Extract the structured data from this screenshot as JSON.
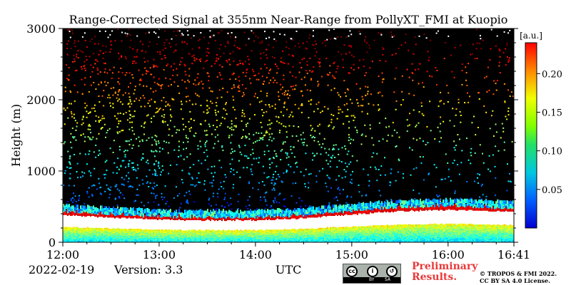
{
  "chart_data": {
    "type": "heatmap",
    "title": "Range-Corrected Signal at 355nm Near-Range from PollyXT_FMI at Kuopio",
    "xlabel": "UTC",
    "ylabel": "Height (m)",
    "xlim": [
      "12:00",
      "16:41"
    ],
    "ylim": [
      0,
      3000
    ],
    "x_ticks": [
      "12:00",
      "13:00",
      "14:00",
      "15:00",
      "16:00",
      "16:41"
    ],
    "y_ticks": [
      "0",
      "1000",
      "2000",
      "3000"
    ],
    "colorbar": {
      "label": "[a.u.]",
      "range": [
        0.0,
        0.24
      ],
      "ticks": [
        "0.05",
        "0.10",
        "0.15",
        "0.20"
      ],
      "colormap": "jet"
    },
    "boundary_layer_top_m": [
      {
        "time": "12:00",
        "height": 450
      },
      {
        "time": "12:30",
        "height": 410
      },
      {
        "time": "13:00",
        "height": 380
      },
      {
        "time": "13:30",
        "height": 370
      },
      {
        "time": "14:00",
        "height": 370
      },
      {
        "time": "14:30",
        "height": 400
      },
      {
        "time": "15:00",
        "height": 460
      },
      {
        "time": "15:30",
        "height": 510
      },
      {
        "time": "16:00",
        "height": 530
      },
      {
        "time": "16:41",
        "height": 500
      }
    ]
  },
  "footer": {
    "date": "2022-02-19",
    "version": "Version: 3.3",
    "utc_label": "UTC",
    "license_badge": {
      "top_icons": [
        "cc-icon",
        "by-person-icon",
        "sa-icon"
      ],
      "bottom_left": "BY",
      "bottom_right": "SA"
    },
    "preliminary_line1": "Preliminary",
    "preliminary_line2": "Results.",
    "copyright_line1": "© TROPOS & FMI 2022.",
    "copyright_line2": "CC BY SA 4.0 License."
  },
  "colors": {
    "background": "#000000",
    "preliminary_text": "#e83a3a"
  }
}
